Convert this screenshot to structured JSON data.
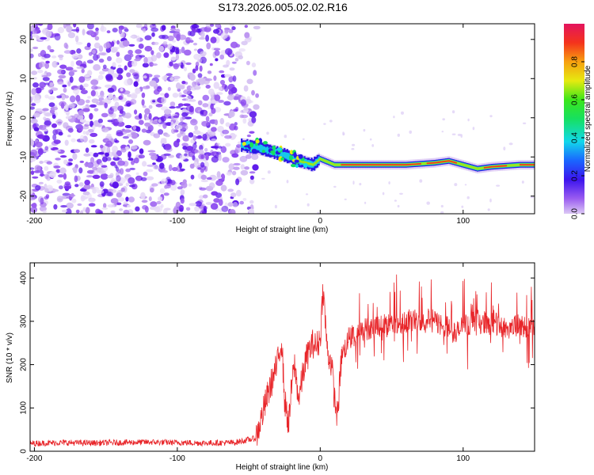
{
  "chart_data": [
    {
      "type": "heatmap",
      "title": "S173.2026.005.02.02.R16",
      "xlabel": "Height of straight line (km)",
      "ylabel": "Frequency (Hz)",
      "xlim": [
        -203,
        150
      ],
      "ylim": [
        -24.5,
        24
      ],
      "xticks": [
        -200,
        -100,
        0,
        100
      ],
      "yticks": [
        -20,
        -10,
        0,
        10,
        20
      ],
      "colorbar": {
        "label": "Normalized spectral amplitude",
        "range": [
          0,
          1
        ],
        "ticks": [
          0.0,
          0.2,
          0.4,
          0.6,
          0.8
        ],
        "tick_labels": [
          "0.0",
          "0.2",
          "0.4",
          "0.6",
          "0.8"
        ]
      },
      "features": {
        "noise_region_x": [
          -203,
          -50
        ],
        "signal_track": {
          "x": [
            -55,
            -45,
            -35,
            -25,
            -15,
            -5,
            0,
            10,
            20,
            40,
            60,
            80,
            90,
            100,
            110,
            120,
            140,
            150
          ],
          "y": [
            -7,
            -7.5,
            -8.5,
            -9.5,
            -11,
            -12,
            -10.5,
            -12,
            -12,
            -12,
            -12,
            -11.5,
            -11,
            -12,
            -13,
            -12.5,
            -12,
            -12
          ]
        }
      }
    },
    {
      "type": "line",
      "xlabel": "Height of straight line (km)",
      "ylabel": "SNR (10 * v/v)",
      "xlim": [
        -203,
        150
      ],
      "ylim": [
        0,
        435
      ],
      "xticks": [
        -200,
        -100,
        0,
        100
      ],
      "yticks": [
        0,
        100,
        200,
        300,
        400
      ],
      "series": [
        {
          "name": "SNR",
          "color": "#e8262a",
          "x": [
            -203,
            -180,
            -160,
            -140,
            -120,
            -100,
            -80,
            -60,
            -45,
            -40,
            -35,
            -30,
            -27,
            -25,
            -22,
            -20,
            -18,
            -15,
            -12,
            -10,
            -8,
            -5,
            -3,
            0,
            2,
            5,
            8,
            10,
            12,
            15,
            20,
            25,
            30,
            40,
            50,
            60,
            70,
            80,
            90,
            95,
            100,
            110,
            120,
            130,
            140,
            150
          ],
          "y": [
            18,
            20,
            19,
            20,
            21,
            20,
            19,
            20,
            30,
            90,
            150,
            200,
            260,
            120,
            60,
            150,
            200,
            120,
            180,
            210,
            230,
            250,
            240,
            260,
            380,
            230,
            200,
            120,
            80,
            220,
            260,
            270,
            280,
            290,
            295,
            300,
            305,
            300,
            285,
            270,
            290,
            300,
            295,
            285,
            290,
            280
          ]
        }
      ]
    }
  ],
  "colors": {
    "line": "#e8262a",
    "axis": "#000000",
    "background": "#ffffff"
  }
}
